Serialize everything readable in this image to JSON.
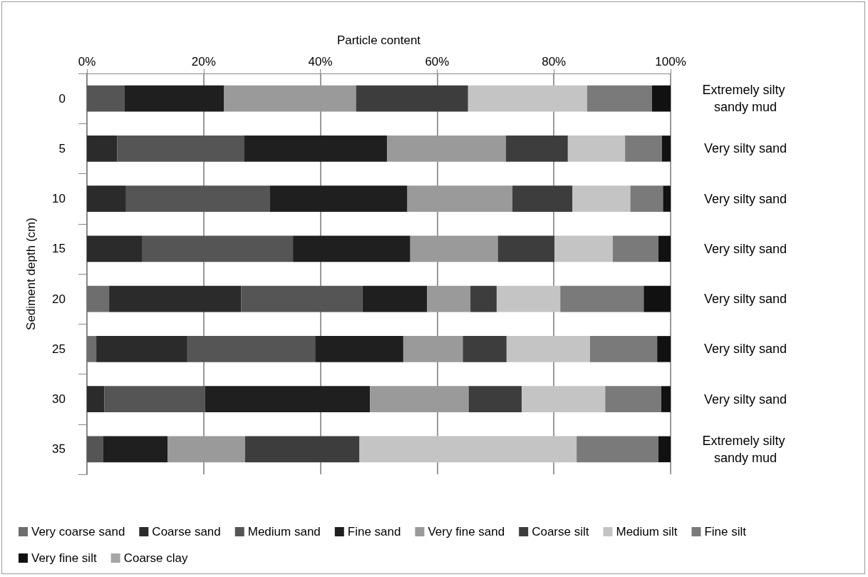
{
  "chart_data": {
    "type": "bar",
    "orientation": "horizontal",
    "stacked": true,
    "xlabel": "Particle content",
    "ylabel": "Sediment depth (cm)",
    "categories": [
      "0",
      "5",
      "10",
      "15",
      "20",
      "25",
      "30",
      "35"
    ],
    "series": [
      {
        "name": "Very coarse sand",
        "color": "#6e6e6e",
        "values": [
          0,
          0,
          0,
          0,
          3.8,
          1.6,
          0,
          0
        ]
      },
      {
        "name": "Coarse sand",
        "color": "#2b2b2b",
        "values": [
          0,
          5.2,
          6.7,
          9.5,
          22.6,
          15.6,
          3.0,
          0
        ]
      },
      {
        "name": "Medium sand",
        "color": "#555555",
        "values": [
          6.4,
          21.7,
          24.6,
          25.8,
          20.8,
          21.9,
          17.2,
          2.8
        ]
      },
      {
        "name": "Fine sand",
        "color": "#1f1f1f",
        "values": [
          17.1,
          24.5,
          23.6,
          20.1,
          11.1,
          15.1,
          28.3,
          11.0
        ]
      },
      {
        "name": "Very fine sand",
        "color": "#9a9a9a",
        "values": [
          22.6,
          20.4,
          18.0,
          15.0,
          7.4,
          10.2,
          16.9,
          13.3
        ]
      },
      {
        "name": "Coarse silt",
        "color": "#3d3d3d",
        "values": [
          19.2,
          10.6,
          10.3,
          9.7,
          4.5,
          7.5,
          9.1,
          19.6
        ]
      },
      {
        "name": "Medium silt",
        "color": "#c4c4c4",
        "values": [
          20.4,
          9.8,
          9.9,
          10.0,
          10.9,
          14.3,
          14.3,
          37.2
        ]
      },
      {
        "name": "Fine silt",
        "color": "#7a7a7a",
        "values": [
          11.1,
          6.3,
          5.6,
          7.8,
          14.3,
          11.5,
          9.6,
          14.0
        ]
      },
      {
        "name": "Very fine silt",
        "color": "#111111",
        "values": [
          3.2,
          1.5,
          1.3,
          2.1,
          4.6,
          2.3,
          1.7,
          2.1
        ]
      },
      {
        "name": "Coarse clay",
        "color": "#a6a6a6",
        "values": [
          0,
          0,
          0,
          0,
          0,
          0,
          0,
          0
        ]
      }
    ],
    "xlim": [
      0,
      100
    ],
    "xticks": [
      {
        "value": 0,
        "label": "0%"
      },
      {
        "value": 20,
        "label": "20%"
      },
      {
        "value": 40,
        "label": "40%"
      },
      {
        "value": 60,
        "label": "60%"
      },
      {
        "value": 80,
        "label": "80%"
      },
      {
        "value": 100,
        "label": "100%"
      }
    ],
    "annotations": [
      "Extremely silty sandy mud",
      "Very silty sand",
      "Very silty sand",
      "Very silty sand",
      "Very silty sand",
      "Very silty sand",
      "Very silty sand",
      "Extremely silty sandy mud"
    ],
    "grid": "x",
    "legend": "bottom"
  }
}
